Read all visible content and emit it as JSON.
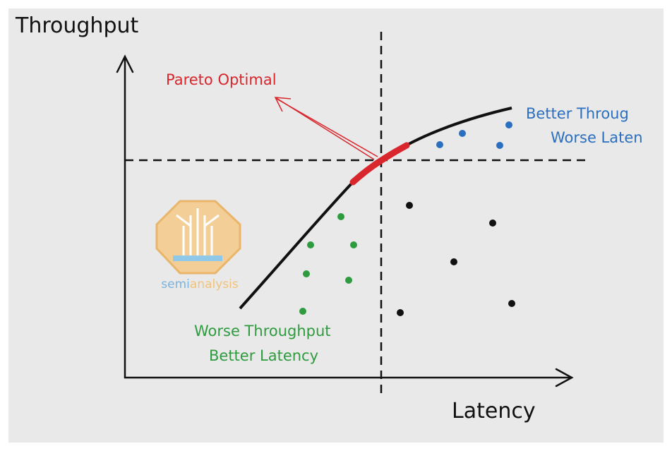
{
  "axes": {
    "y_label": "Throughput",
    "x_label": "Latency"
  },
  "annotations": {
    "pareto": "Pareto Optimal",
    "top_right": [
      "Better Throug",
      "Worse Laten"
    ],
    "bottom_left": [
      "Worse Throughput",
      "Better Latency"
    ]
  },
  "logo": {
    "wordmark": [
      "semi",
      "analysis"
    ]
  }
}
